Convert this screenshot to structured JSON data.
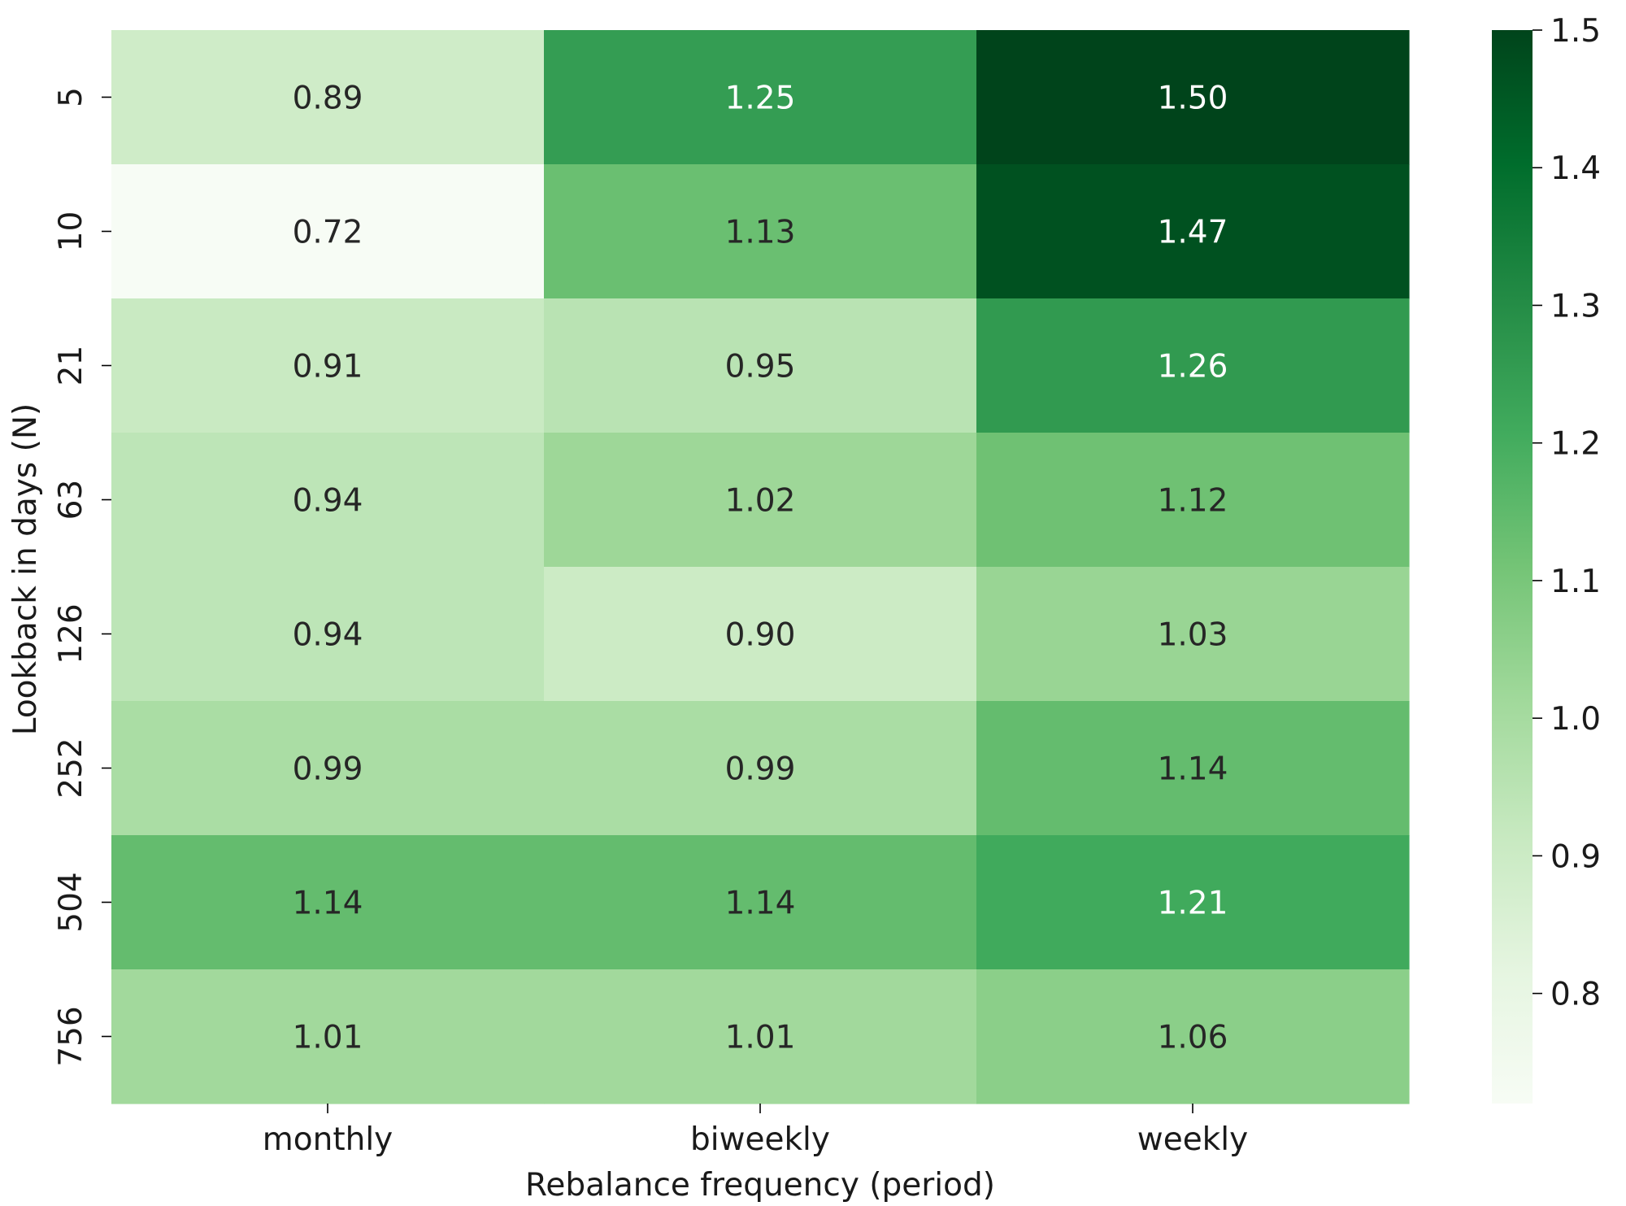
{
  "chart_data": {
    "type": "heatmap",
    "title": "",
    "xlabel": "Rebalance frequency (period)",
    "ylabel": "Lookback in days (N)",
    "x_categories": [
      "monthly",
      "biweekly",
      "weekly"
    ],
    "y_categories": [
      "5",
      "10",
      "21",
      "63",
      "126",
      "252",
      "504",
      "756"
    ],
    "values": [
      [
        0.89,
        1.25,
        1.5
      ],
      [
        0.72,
        1.13,
        1.47
      ],
      [
        0.91,
        0.95,
        1.26
      ],
      [
        0.94,
        1.02,
        1.12
      ],
      [
        0.94,
        0.9,
        1.03
      ],
      [
        0.99,
        0.99,
        1.14
      ],
      [
        1.14,
        1.14,
        1.21
      ],
      [
        1.01,
        1.01,
        1.06
      ]
    ],
    "colorbar": {
      "range": [
        0.72,
        1.5
      ],
      "ticks": [
        "0.8",
        "0.9",
        "1.0",
        "1.1",
        "1.2",
        "1.3",
        "1.4",
        "1.5"
      ],
      "colormap": "Greens"
    },
    "annotation_format": "2 decimals",
    "annotation_colors": {
      "dark": "#262626",
      "light": "#ffffff"
    },
    "grid": false,
    "legend": "colorbar-right"
  }
}
